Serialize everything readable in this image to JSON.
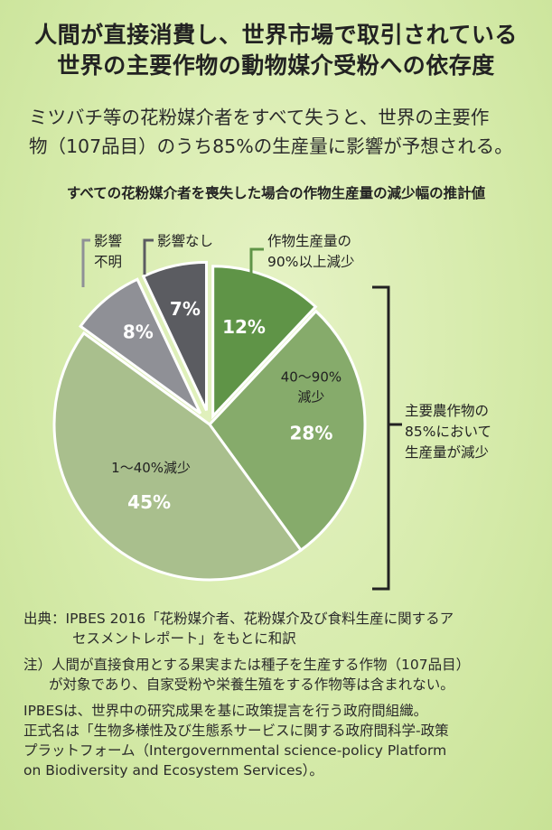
{
  "title": {
    "line1": "人間が直接消費し、世界市場で取引されている",
    "line2": "世界の主要作物の動物媒介受粉への依存度"
  },
  "lead": {
    "line1": "ミツバチ等の花粉媒介者をすべて失うと、世界の主要作",
    "line2": "物（107品目）のうち85%の生産量に影響が予想される。"
  },
  "chart_data": {
    "type": "pie",
    "title": "すべての花粉媒介者を喪失した場合の作物生産量の減少幅の推計値",
    "slices": [
      {
        "label_lines": [
          "作物生産量の",
          "90%以上減少"
        ],
        "value": 12,
        "value_label": "12%",
        "color": "#5f9447"
      },
      {
        "label_lines": [
          "40～90%",
          "減少"
        ],
        "value": 28,
        "value_label": "28%",
        "color": "#86ab6b"
      },
      {
        "label_lines": [
          "1～40%減少"
        ],
        "value": 45,
        "value_label": "45%",
        "color": "#a9bf8d"
      },
      {
        "label_lines": [
          "影響",
          "不明"
        ],
        "value": 8,
        "value_label": "8%",
        "color": "#8f9096"
      },
      {
        "label_lines": [
          "影響なし"
        ],
        "value": 7,
        "value_label": "7%",
        "color": "#5b5c61"
      }
    ],
    "bracket_label_lines": [
      "主要農作物の",
      "85%において",
      "生産量が減少"
    ]
  },
  "notes": {
    "source_label": "出典：",
    "source_line1": "IPBES 2016「花粉媒介者、花粉媒介及び食料生産に関するア",
    "source_line2": "セスメントレポート」をもとに和訳",
    "note_label": "注）",
    "note_line1": "人間が直接食用とする果実または種子を生産する作物（107品目）",
    "note_line2": "が対象であり、自家受粉や栄養生殖をする作物等は含まれない。",
    "ipbes_line1": "IPBESは、世界中の研究成果を基に政策提言を行う政府間組織。",
    "ipbes_line2": "正式名は「生物多様性及び生態系サービスに関する政府間科学-政策",
    "ipbes_line3": "プラットフォーム（Intergovernmental science-policy Platform",
    "ipbes_line4": "on Biodiversity and Ecosystem Services）。"
  }
}
